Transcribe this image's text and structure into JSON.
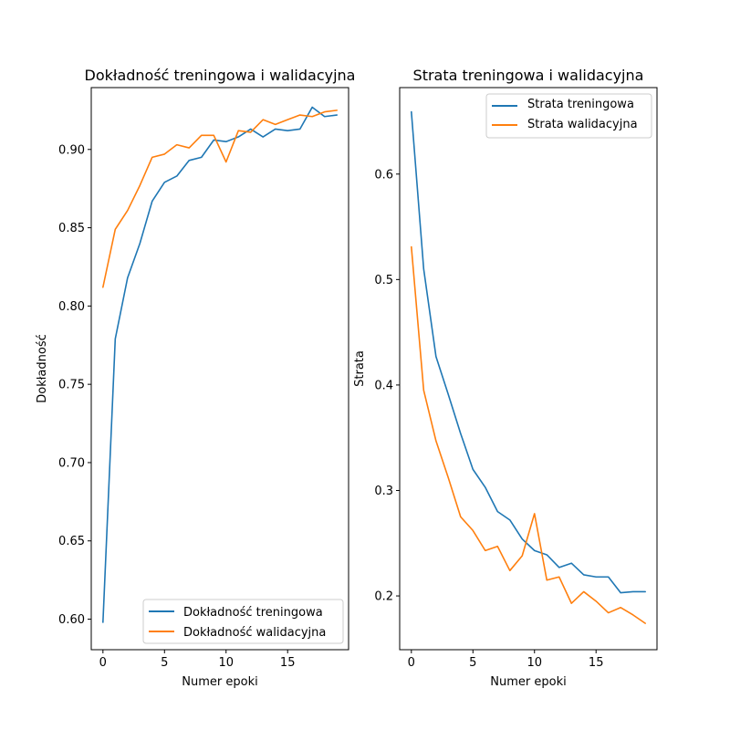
{
  "colors": {
    "series1": "#1f77b4",
    "series2": "#ff7f0e"
  },
  "chart_data": [
    {
      "type": "line",
      "title": "Dokładność treningowa i walidacyjna",
      "xlabel": "Numer epoki",
      "ylabel": "Dokładność",
      "xlim": [
        -0.95,
        19.95
      ],
      "ylim": [
        0.5805,
        0.9395
      ],
      "xticks": [
        0,
        5,
        10,
        15
      ],
      "xtick_labels": [
        "0",
        "5",
        "10",
        "15"
      ],
      "yticks": [
        0.6,
        0.65,
        0.7,
        0.75,
        0.8,
        0.85,
        0.9
      ],
      "ytick_labels": [
        "0.60",
        "0.65",
        "0.70",
        "0.75",
        "0.80",
        "0.85",
        "0.90"
      ],
      "legend_position": "lower-right",
      "grid": false,
      "x": [
        0,
        1,
        2,
        3,
        4,
        5,
        6,
        7,
        8,
        9,
        10,
        11,
        12,
        13,
        14,
        15,
        16,
        17,
        18,
        19
      ],
      "series": [
        {
          "name": "Dokładność treningowa",
          "values": [
            0.598,
            0.779,
            0.818,
            0.84,
            0.867,
            0.879,
            0.883,
            0.893,
            0.895,
            0.906,
            0.905,
            0.908,
            0.913,
            0.908,
            0.913,
            0.912,
            0.913,
            0.927,
            0.921,
            0.922
          ]
        },
        {
          "name": "Dokładność walidacyjna",
          "values": [
            0.812,
            0.849,
            0.861,
            0.877,
            0.895,
            0.897,
            0.903,
            0.901,
            0.909,
            0.909,
            0.892,
            0.912,
            0.911,
            0.919,
            0.916,
            0.919,
            0.922,
            0.921,
            0.924,
            0.925
          ]
        }
      ]
    },
    {
      "type": "line",
      "title": "Strata treningowa i walidacyjna",
      "xlabel": "Numer epoki",
      "ylabel": "Strata",
      "xlim": [
        -0.95,
        19.95
      ],
      "ylim": [
        0.149,
        0.682
      ],
      "xticks": [
        0,
        5,
        10,
        15
      ],
      "xtick_labels": [
        "0",
        "5",
        "10",
        "15"
      ],
      "yticks": [
        0.2,
        0.3,
        0.4,
        0.5,
        0.6
      ],
      "ytick_labels": [
        "0.2",
        "0.3",
        "0.4",
        "0.5",
        "0.6"
      ],
      "legend_position": "upper-right",
      "grid": false,
      "x": [
        0,
        1,
        2,
        3,
        4,
        5,
        6,
        7,
        8,
        9,
        10,
        11,
        12,
        13,
        14,
        15,
        16,
        17,
        18,
        19
      ],
      "series": [
        {
          "name": "Strata treningowa",
          "values": [
            0.659,
            0.51,
            0.427,
            0.391,
            0.354,
            0.32,
            0.303,
            0.28,
            0.272,
            0.254,
            0.243,
            0.239,
            0.227,
            0.231,
            0.22,
            0.218,
            0.218,
            0.203,
            0.204,
            0.204
          ]
        },
        {
          "name": "Strata walidacyjna",
          "values": [
            0.531,
            0.395,
            0.347,
            0.312,
            0.275,
            0.262,
            0.243,
            0.247,
            0.224,
            0.238,
            0.278,
            0.215,
            0.218,
            0.193,
            0.204,
            0.195,
            0.184,
            0.189,
            0.182,
            0.174
          ]
        }
      ]
    }
  ]
}
